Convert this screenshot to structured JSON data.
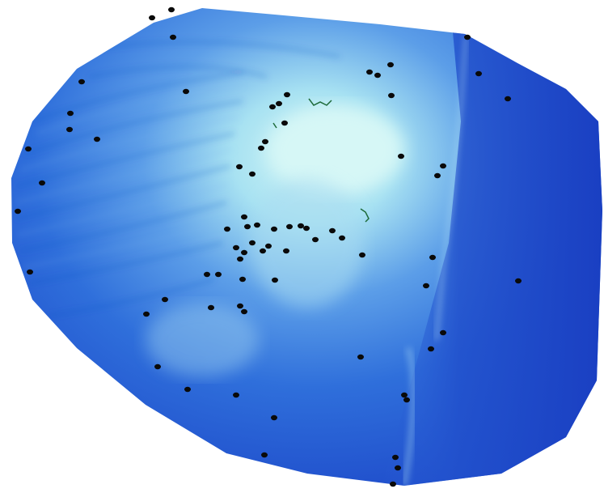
{
  "scene": {
    "kind": "3d-terrain-surface",
    "colors": {
      "background": "#ffffff",
      "deep": "#1c3fc8",
      "mid": "#3a78e0",
      "light": "#8fc6f2",
      "peak": "#cdf3f5",
      "marker": "#0a0a0a",
      "contour": "#1e6b3a"
    }
  }
}
